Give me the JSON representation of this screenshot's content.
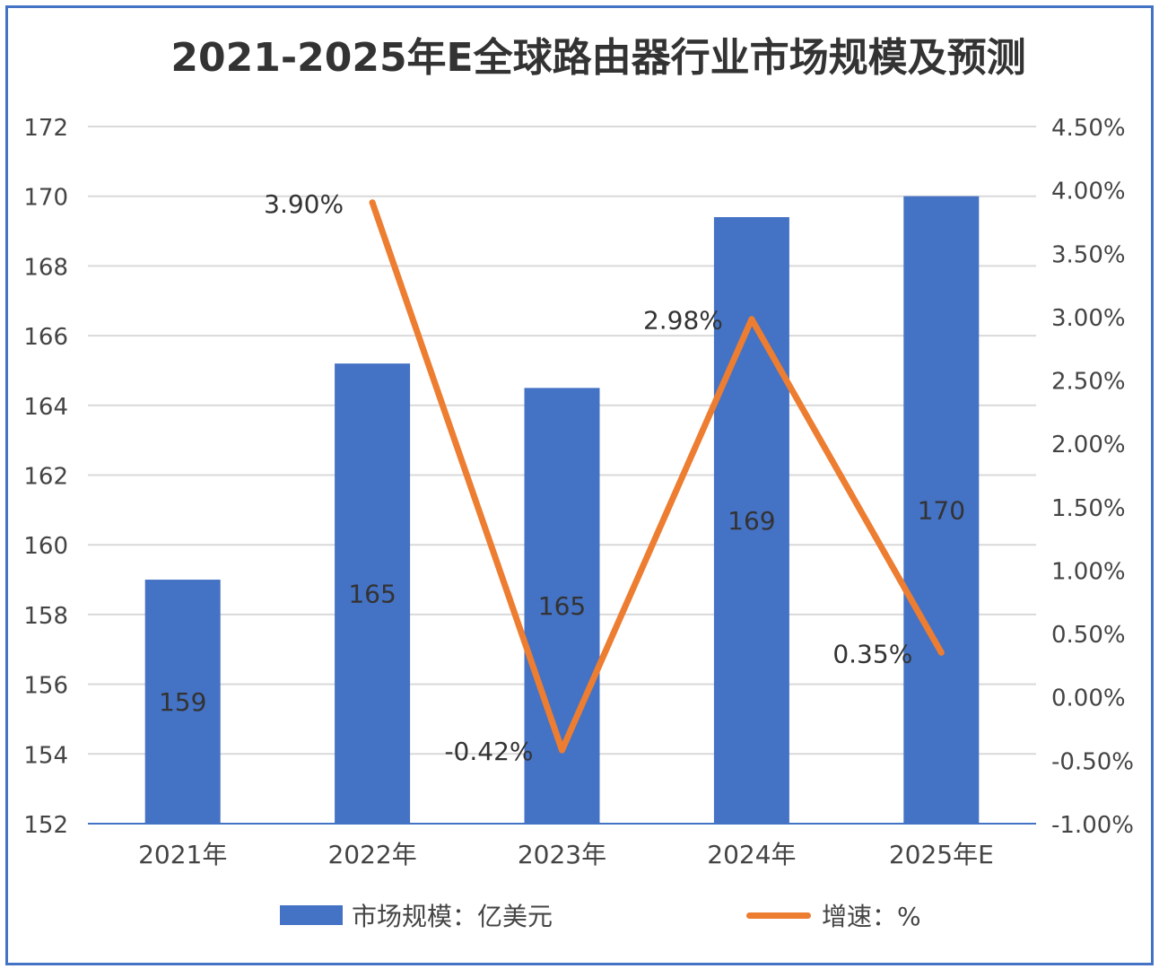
{
  "chart_data": {
    "type": "bar",
    "title": "2021-2025年E全球路由器行业市场规模及预测",
    "categories": [
      "2021年",
      "2022年",
      "2023年",
      "2024年",
      "2025年E"
    ],
    "series": [
      {
        "name": "市场规模：亿美元",
        "type": "bar",
        "axis": "left",
        "values": [
          159,
          165.2,
          164.5,
          169.4,
          170
        ],
        "data_labels": [
          "159",
          "165",
          "165",
          "169",
          "170"
        ]
      },
      {
        "name": "增速：%",
        "type": "line",
        "axis": "right",
        "values": [
          3.9,
          -0.42,
          2.98,
          0.35
        ],
        "x": [
          "2022年",
          "2023年",
          "2024年",
          "2025年E"
        ],
        "data_labels": [
          "3.90%",
          "-0.42%",
          "2.98%",
          "0.35%"
        ]
      }
    ],
    "left_axis": {
      "ylim": [
        152,
        172
      ],
      "ticks": [
        "152",
        "154",
        "156",
        "158",
        "160",
        "162",
        "164",
        "166",
        "168",
        "170",
        "172"
      ]
    },
    "right_axis": {
      "ylim": [
        -1.0,
        4.5
      ],
      "ticks": [
        "-1.00%",
        "-0.50%",
        "0.00%",
        "0.50%",
        "1.00%",
        "1.50%",
        "2.00%",
        "2.50%",
        "3.00%",
        "3.50%",
        "4.00%",
        "4.50%"
      ]
    },
    "grid": true,
    "legend_position": "bottom",
    "colors": {
      "bar": "#4472c4",
      "line": "#ed7d31",
      "frame": "#4472c4"
    }
  }
}
